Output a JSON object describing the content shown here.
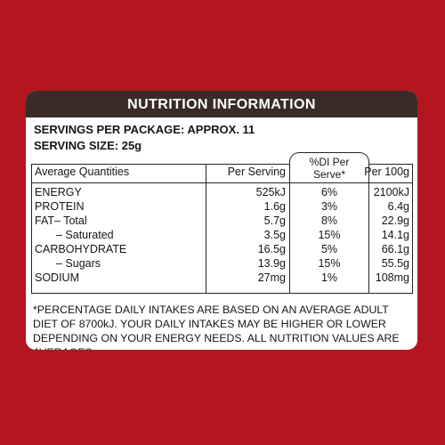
{
  "title": "NUTRITION INFORMATION",
  "servings_per_package": "SERVINGS PER PACKAGE: APPROX. 11",
  "serving_size": "SERVING SIZE: 25g",
  "columns": {
    "avg": "Average Quantities",
    "per_serving": "Per Serving",
    "di_line1": "%DI Per",
    "di_line2": "Serve*",
    "per_100g": "Per 100g"
  },
  "rows": [
    {
      "name": "ENERGY",
      "serving": "525kJ",
      "di": "6%",
      "per100": "2100kJ"
    },
    {
      "name": "PROTEIN",
      "serving": "1.6g",
      "di": "3%",
      "per100": "6.4g"
    },
    {
      "name": "FAT– Total",
      "serving": "5.7g",
      "di": "8%",
      "per100": "22.9g"
    },
    {
      "name": "– Saturated",
      "serving": "3.5g",
      "di": "15%",
      "per100": "14.1g"
    },
    {
      "name": "CARBOHYDRATE",
      "serving": "16.5g",
      "di": "5%",
      "per100": "66.1g"
    },
    {
      "name": "– Sugars",
      "serving": "13.9g",
      "di": "15%",
      "per100": "55.5g"
    },
    {
      "name": "SODIUM",
      "serving": "27mg",
      "di": "1%",
      "per100": "108mg"
    }
  ],
  "footnote": "*PERCENTAGE DAILY INTAKES ARE BASED ON AN AVERAGE ADULT DIET OF 8700kJ. YOUR DAILY INTAKES MAY BE HIGHER OR LOWER DEPENDING ON YOUR ENERGY NEEDS. ALL NUTRITION VALUES ARE AVERAGES.",
  "colors": {
    "background": "#b3161e",
    "header": "#3a2a28",
    "panel": "#ffffff"
  }
}
